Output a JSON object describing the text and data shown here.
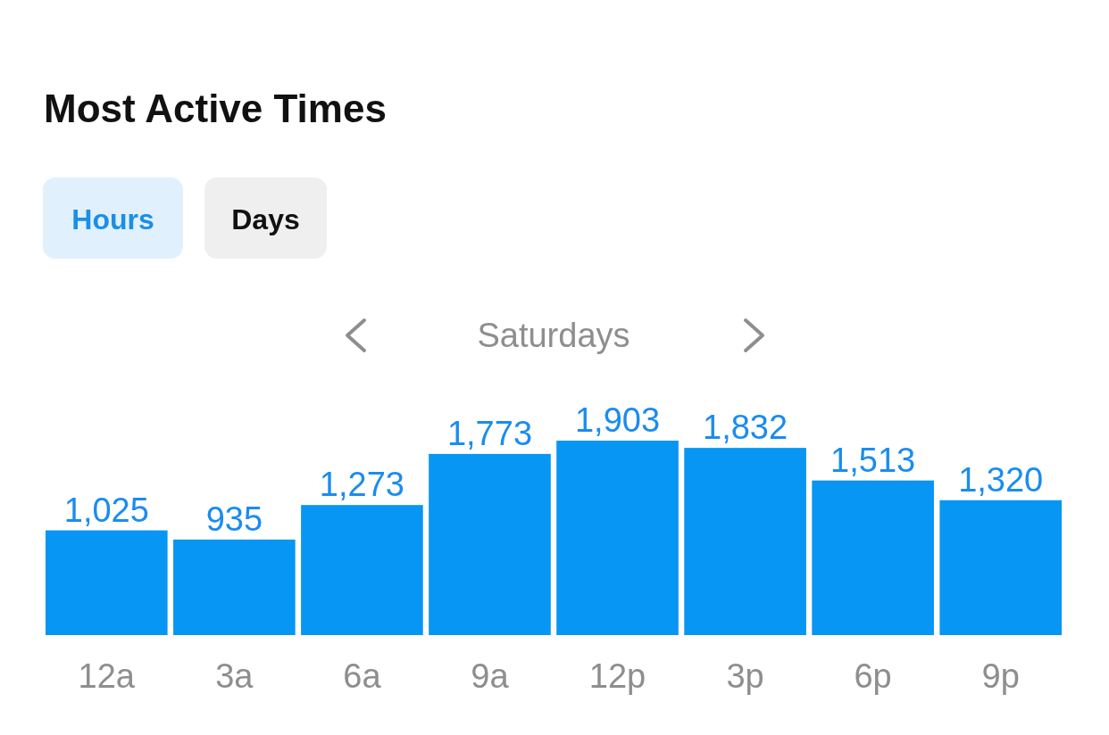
{
  "chart_data": {
    "type": "bar",
    "title": "Most Active Times",
    "subtitle": "Saturdays",
    "annotations": [
      "Hours",
      "Days"
    ],
    "categories": [
      "12a",
      "3a",
      "6a",
      "9a",
      "12p",
      "3p",
      "6p",
      "9p"
    ],
    "values": [
      1025,
      935,
      1273,
      1773,
      1903,
      1832,
      1513,
      1320
    ],
    "value_labels": [
      "1,025",
      "935",
      "1,273",
      "1,773",
      "1,903",
      "1,832",
      "1,513",
      "1,320"
    ],
    "color": "#0796f3"
  }
}
